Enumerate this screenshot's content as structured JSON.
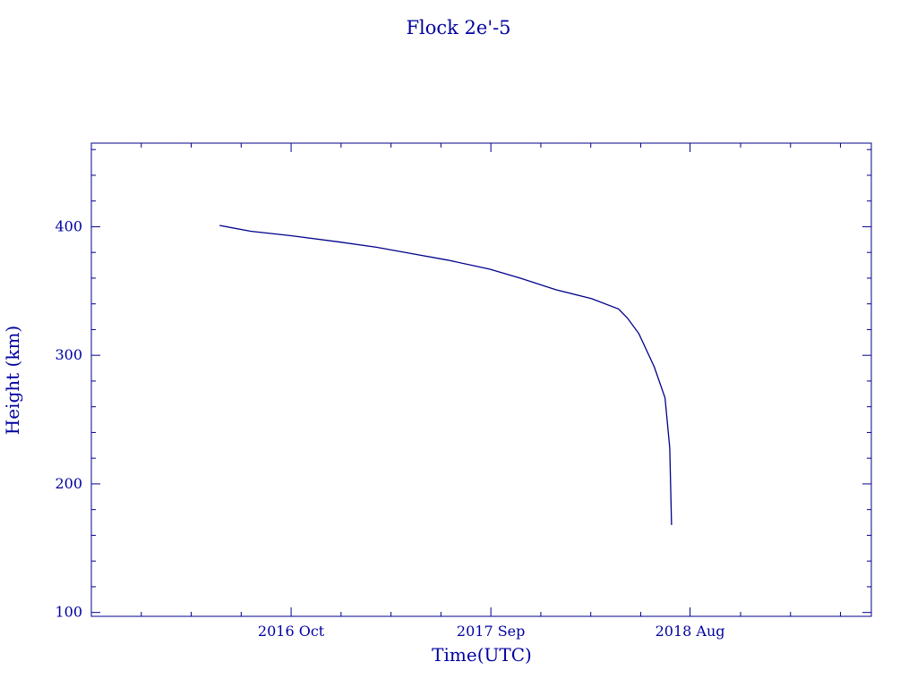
{
  "chart_data": {
    "type": "line",
    "title": "Flock 2e'-5",
    "xlabel": "Time(UTC)",
    "ylabel": "Height (km)",
    "xlim": [
      "2015-11-01",
      "2019-06-01"
    ],
    "ylim": [
      97,
      465
    ],
    "x_ticks": [
      {
        "date": "2016-10-01",
        "label": "2016 Oct"
      },
      {
        "date": "2017-09-01",
        "label": "2017 Sep"
      },
      {
        "date": "2018-08-01",
        "label": "2018 Aug"
      }
    ],
    "y_ticks": [
      100,
      200,
      300,
      400
    ],
    "y_minor_step": 20,
    "grid": false,
    "color": "#00008b",
    "series": [
      {
        "x": [
          "2016-06-03",
          "2016-07-25",
          "2016-10-01",
          "2016-12-23",
          "2017-02-21",
          "2017-04-22",
          "2017-06-21",
          "2017-08-30",
          "2017-10-20",
          "2017-12-19",
          "2018-02-17",
          "2018-04-03",
          "2018-04-18",
          "2018-05-07",
          "2018-06-02",
          "2018-06-20",
          "2018-06-28",
          "2018-07-01"
        ],
        "y": [
          401,
          396.5,
          393,
          388,
          384,
          379,
          374,
          367,
          360,
          351,
          344,
          336,
          329,
          317,
          291,
          267,
          228,
          168
        ]
      }
    ]
  }
}
